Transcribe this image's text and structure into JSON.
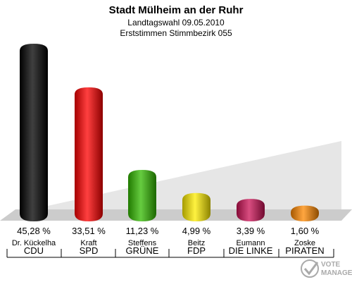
{
  "chart_data": {
    "type": "bar",
    "title": "Stadt Mülheim an der Ruhr",
    "subtitle_1": "Landtagswahl 09.05.2010",
    "subtitle_2": "Erststimmen Stimmbezirk 055",
    "ylim": [
      0,
      50
    ],
    "candidates": [
      "Dr. Kückelha",
      "Kraft",
      "Steffens",
      "Beitz",
      "Eumann",
      "Zoske"
    ],
    "categories": [
      "CDU",
      "SPD",
      "GRÜNE",
      "FDP",
      "DIE LINKE",
      "PIRATEN"
    ],
    "values": [
      45.28,
      33.51,
      11.23,
      4.99,
      3.39,
      1.6
    ],
    "labels": [
      "45,28 %",
      "33,51 %",
      "11,23 %",
      "4,99 %",
      "3,39 %",
      "1,60 %"
    ],
    "colors": [
      "#000000",
      "#ff0000",
      "#33bb00",
      "#ffee00",
      "#cc1155",
      "#ff8800"
    ]
  },
  "watermark": {
    "line1": "VOTE",
    "line2": "MANAGER"
  }
}
